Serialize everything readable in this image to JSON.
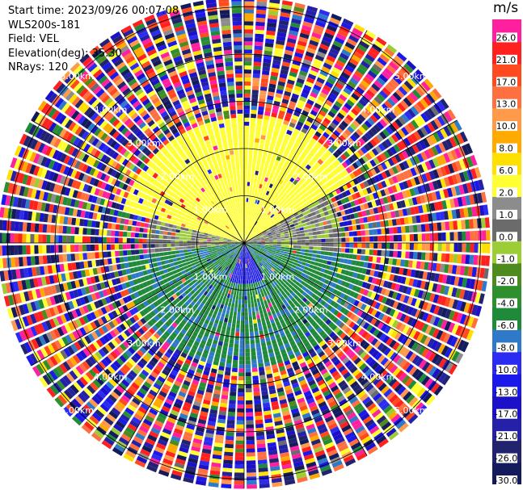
{
  "header": {
    "start_time": "Start time: 2023/09/26 00:07:08",
    "instrument": "WLS200s-181",
    "field": "Field: VEL",
    "elevation": "Elevation(deg): 35.30",
    "nrays": "NRays: 120"
  },
  "chart_data": {
    "type": "heatmap",
    "projection": "polar-ppi",
    "field": "VEL",
    "units": "m/s",
    "nrays": 120,
    "range_rings_km": [
      1.0,
      2.0,
      3.0,
      4.0,
      5.0
    ],
    "ring_labels": [
      "1.00km",
      "2.00km",
      "3.00km",
      "4.00km",
      "5.00km"
    ],
    "spoke_azimuths_deg": [
      0,
      30,
      60,
      90,
      120,
      150,
      180,
      210,
      240,
      270,
      300,
      330
    ],
    "max_range_km": 5.2,
    "sector_pattern": [
      {
        "from_az": 285,
        "to_az": 60,
        "max_range_km": 2.6,
        "velocity_ms": 4.5,
        "note": "toward north: yellow/orange"
      },
      {
        "from_az": 60,
        "to_az": 95,
        "max_range_km": 2.0,
        "velocity_ms": 0.5
      },
      {
        "from_az": 95,
        "to_az": 265,
        "max_range_km": 2.6,
        "velocity_ms": -5.5,
        "note": "toward south: green"
      },
      {
        "from_az": 150,
        "to_az": 200,
        "max_range_km": 0.8,
        "velocity_ms": -11.0,
        "note": "near south: blue"
      },
      {
        "from_az": 265,
        "to_az": 285,
        "max_range_km": 2.0,
        "velocity_ms": 0.5
      }
    ],
    "colorbar": {
      "title": "m/s",
      "min": -30.0,
      "max": 30.0,
      "tick_labels": [
        "-30.0",
        "-26.0",
        "-21.0",
        "-17.0",
        "-13.0",
        "-10.0",
        "-8.0",
        "-6.0",
        "-4.0",
        "-2.0",
        "-1.0",
        "0.0",
        "1.0",
        "2.0",
        "6.0",
        "8.0",
        "10.0",
        "13.0",
        "17.0",
        "21.0",
        "26.0"
      ],
      "colors": [
        "#141b5c",
        "#22236e",
        "#2421a8",
        "#1c10c9",
        "#1a18ea",
        "#2b2bf2",
        "#2e7ac9",
        "#1e8a3a",
        "#2f8f2f",
        "#4f8a1f",
        "#9ccc36",
        "#6b6b6b",
        "#8c8c8c",
        "#ffff33",
        "#ffe000",
        "#ffaa00",
        "#ff9a4a",
        "#ff7040",
        "#ff4a20",
        "#ff2020",
        "#ff20a0"
      ]
    }
  }
}
